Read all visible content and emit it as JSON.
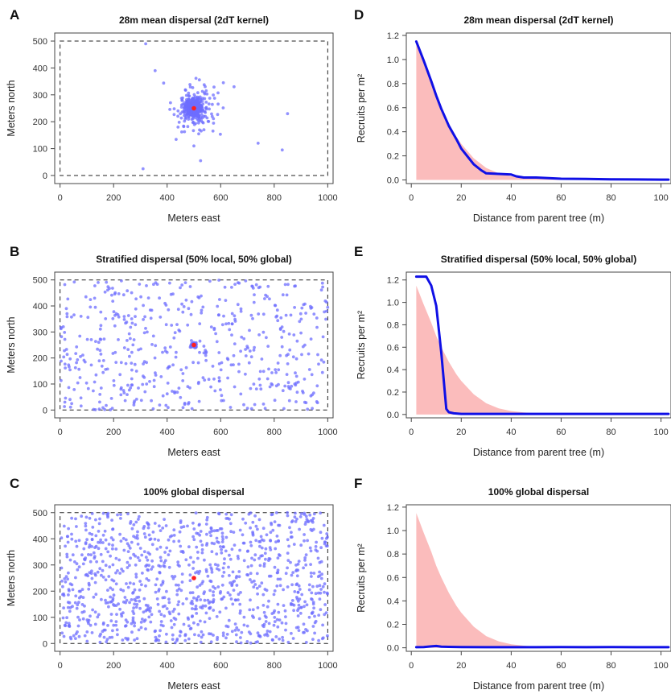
{
  "colors": {
    "point": "#6d6dff",
    "parent": "#ff2020",
    "line": "#1010e6",
    "shade": "#fbbcbc",
    "frame": "#444444"
  },
  "chart_data": [
    {
      "letter": "A",
      "type": "scatter",
      "title": "28m mean dispersal (2dT kernel)",
      "xlabel": "Meters east",
      "ylabel": "Meters north",
      "xlim": [
        -20,
        1020
      ],
      "ylim": [
        -30,
        530
      ],
      "xticks": [
        0,
        200,
        400,
        600,
        800,
        1000
      ],
      "yticks": [
        0,
        100,
        200,
        300,
        400,
        500
      ],
      "plot_boundary": {
        "x": [
          0,
          1000
        ],
        "y": [
          0,
          500
        ],
        "style": "dashed"
      },
      "parent_tree": [
        500,
        250
      ],
      "pattern": "clustered",
      "outliers": [
        [
          320,
          490
        ],
        [
          355,
          390
        ],
        [
          610,
          345
        ],
        [
          650,
          330
        ],
        [
          850,
          230
        ],
        [
          740,
          120
        ],
        [
          830,
          95
        ],
        [
          310,
          25
        ],
        [
          525,
          55
        ],
        [
          500,
          110
        ]
      ]
    },
    {
      "letter": "B",
      "type": "scatter",
      "title": "Stratified dispersal (50% local, 50% global)",
      "xlabel": "Meters east",
      "ylabel": "Meters north",
      "xlim": [
        -20,
        1020
      ],
      "ylim": [
        -30,
        530
      ],
      "xticks": [
        0,
        200,
        400,
        600,
        800,
        1000
      ],
      "yticks": [
        0,
        100,
        200,
        300,
        400,
        500
      ],
      "plot_boundary": {
        "x": [
          0,
          1000
        ],
        "y": [
          0,
          500
        ],
        "style": "dashed"
      },
      "parent_tree": [
        500,
        250
      ],
      "pattern": "stratified"
    },
    {
      "letter": "C",
      "type": "scatter",
      "title": "100% global dispersal",
      "xlabel": "Meters east",
      "ylabel": "Meters north",
      "xlim": [
        -20,
        1020
      ],
      "ylim": [
        -30,
        530
      ],
      "xticks": [
        0,
        200,
        400,
        600,
        800,
        1000
      ],
      "yticks": [
        0,
        100,
        200,
        300,
        400,
        500
      ],
      "plot_boundary": {
        "x": [
          0,
          1000
        ],
        "y": [
          0,
          500
        ],
        "style": "dashed"
      },
      "parent_tree": [
        500,
        250
      ],
      "pattern": "uniform"
    },
    {
      "letter": "D",
      "type": "line",
      "title": "28m mean dispersal (2dT kernel)",
      "xlabel": "Distance from parent tree (m)",
      "ylabel": "Recruits per m²",
      "xlim": [
        -2,
        104
      ],
      "ylim": [
        -0.03,
        1.22
      ],
      "xticks": [
        0,
        20,
        40,
        60,
        80,
        100
      ],
      "yticks": [
        "0.0",
        "0.2",
        "0.4",
        "0.6",
        "0.8",
        "1.0",
        "1.2"
      ],
      "shaded_area": {
        "x": [
          2,
          5,
          8,
          10,
          12,
          15,
          18,
          20,
          25,
          30,
          35,
          40,
          45,
          50,
          60,
          80,
          100
        ],
        "y": [
          1.15,
          0.98,
          0.82,
          0.7,
          0.6,
          0.47,
          0.36,
          0.3,
          0.18,
          0.1,
          0.055,
          0.03,
          0.018,
          0.01,
          0.005,
          0.002,
          0.001
        ]
      },
      "series": [
        {
          "x": [
            2,
            5,
            8,
            10,
            12,
            15,
            18,
            20,
            25,
            28,
            30,
            35,
            40,
            42,
            45,
            50,
            55,
            60,
            70,
            80,
            90,
            100,
            103
          ],
          "y": [
            1.15,
            0.99,
            0.82,
            0.7,
            0.59,
            0.45,
            0.34,
            0.26,
            0.13,
            0.08,
            0.055,
            0.05,
            0.045,
            0.03,
            0.02,
            0.02,
            0.015,
            0.01,
            0.008,
            0.005,
            0.004,
            0.003,
            0.003
          ]
        }
      ]
    },
    {
      "letter": "E",
      "type": "line",
      "title": "Stratified dispersal (50% local, 50% global)",
      "xlabel": "Distance from parent tree (m)",
      "ylabel": "Recruits per m²",
      "xlim": [
        -2,
        104
      ],
      "ylim": [
        -0.03,
        1.27
      ],
      "xticks": [
        0,
        20,
        40,
        60,
        80,
        100
      ],
      "yticks": [
        "0.0",
        "0.2",
        "0.4",
        "0.6",
        "0.8",
        "1.0",
        "1.2"
      ],
      "shaded_area": {
        "x": [
          2,
          5,
          8,
          10,
          12,
          15,
          18,
          20,
          25,
          30,
          35,
          40,
          45,
          50,
          60,
          80,
          100
        ],
        "y": [
          1.15,
          0.98,
          0.82,
          0.7,
          0.6,
          0.47,
          0.36,
          0.3,
          0.18,
          0.1,
          0.055,
          0.03,
          0.018,
          0.01,
          0.005,
          0.002,
          0.001
        ]
      },
      "series": [
        {
          "x": [
            2,
            4,
            6,
            8,
            10,
            12,
            14,
            15,
            17,
            20,
            30,
            40,
            50,
            60,
            80,
            100,
            103
          ],
          "y": [
            1.23,
            1.23,
            1.23,
            1.15,
            0.97,
            0.55,
            0.05,
            0.02,
            0.01,
            0.005,
            0.005,
            0.005,
            0.005,
            0.005,
            0.005,
            0.005,
            0.005
          ]
        }
      ]
    },
    {
      "letter": "F",
      "type": "line",
      "title": "100% global dispersal",
      "xlabel": "Distance from parent tree (m)",
      "ylabel": "Recruits per m²",
      "xlim": [
        -2,
        104
      ],
      "ylim": [
        -0.03,
        1.22
      ],
      "xticks": [
        0,
        20,
        40,
        60,
        80,
        100
      ],
      "yticks": [
        "0.0",
        "0.2",
        "0.4",
        "0.6",
        "0.8",
        "1.0",
        "1.2"
      ],
      "shaded_area": {
        "x": [
          2,
          5,
          8,
          10,
          12,
          15,
          18,
          20,
          25,
          30,
          35,
          40,
          45,
          50,
          60,
          80,
          100
        ],
        "y": [
          1.15,
          0.98,
          0.82,
          0.7,
          0.6,
          0.47,
          0.36,
          0.3,
          0.18,
          0.1,
          0.055,
          0.03,
          0.018,
          0.01,
          0.005,
          0.002,
          0.001
        ]
      },
      "series": [
        {
          "x": [
            2,
            5,
            8,
            10,
            12,
            15,
            20,
            30,
            40,
            50,
            60,
            70,
            80,
            90,
            100,
            103
          ],
          "y": [
            0.005,
            0.006,
            0.012,
            0.015,
            0.01,
            0.008,
            0.006,
            0.005,
            0.005,
            0.005,
            0.006,
            0.005,
            0.006,
            0.005,
            0.005,
            0.005
          ]
        }
      ]
    }
  ]
}
